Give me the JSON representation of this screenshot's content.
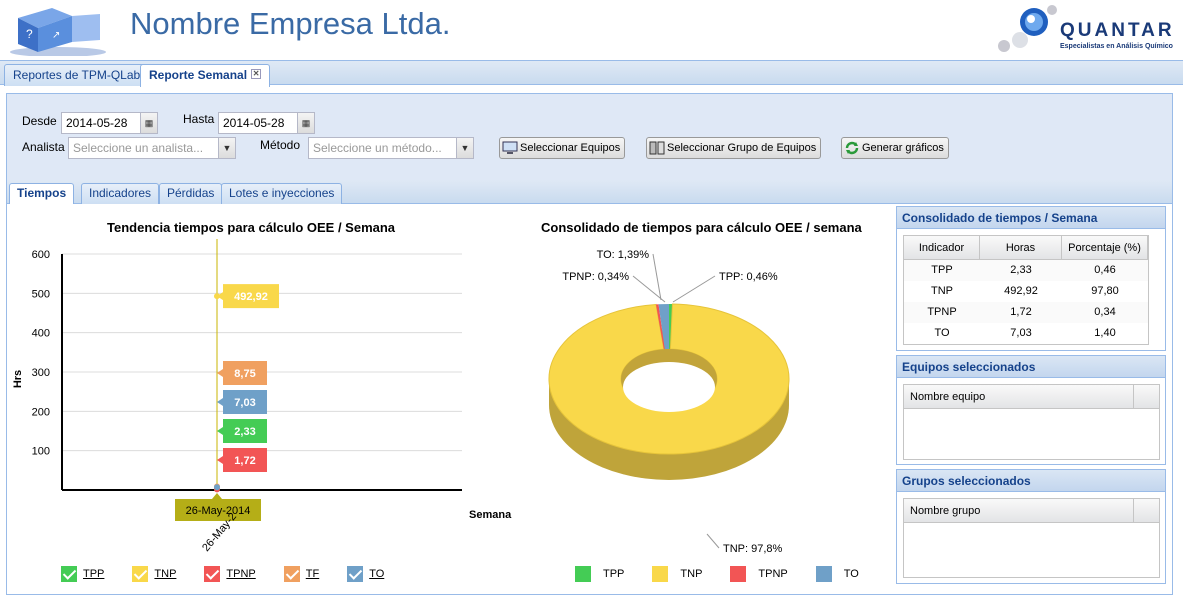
{
  "header": {
    "company": "Nombre Empresa Ltda.",
    "brand": "QUANTAR",
    "brand_sub": "Especialistas en Análisis Químico"
  },
  "tabs": [
    {
      "label": "Reportes de TPM-QLabs"
    },
    {
      "label": "Reporte Semanal"
    }
  ],
  "form": {
    "desde_label": "Desde",
    "desde_value": "2014-05-28",
    "hasta_label": "Hasta",
    "hasta_value": "2014-05-28",
    "analista_label": "Analista",
    "analista_placeholder": "Seleccione un analista...",
    "metodo_label": "Método",
    "metodo_placeholder": "Seleccione un método...",
    "btn_equipos": "Seleccionar Equipos",
    "btn_grupo": "Seleccionar Grupo de Equipos",
    "btn_generar": "Generar gráficos"
  },
  "subtabs": [
    {
      "label": "Tiempos"
    },
    {
      "label": "Indicadores"
    },
    {
      "label": "Pérdidas"
    },
    {
      "label": "Lotes e inyecciones"
    }
  ],
  "colors": {
    "TPP": "#44cc55",
    "TNP": "#f9d84a",
    "TPNP": "#f25555",
    "TF": "#f0a060",
    "TO": "#6fa0c8"
  },
  "chart_data": [
    {
      "type": "line",
      "title": "Tendencia tiempos para cálculo OEE / Semana",
      "ylabel": "Hrs",
      "xlabel": "Semana",
      "ylim": [
        0,
        600
      ],
      "yticks": [
        "100",
        "200",
        "300",
        "400",
        "500",
        "600"
      ],
      "x": [
        "26-May-2014"
      ],
      "x_tick_label": "26-May-2",
      "crosshair_label": "26-May-2014",
      "series": [
        {
          "name": "TPP",
          "values": [
            2.33
          ],
          "label": "2,33"
        },
        {
          "name": "TNP",
          "values": [
            492.92
          ],
          "label": "492,92"
        },
        {
          "name": "TPNP",
          "values": [
            1.72
          ],
          "label": "1,72"
        },
        {
          "name": "TF",
          "values": [
            8.75
          ],
          "label": "8,75"
        },
        {
          "name": "TO",
          "values": [
            7.03
          ],
          "label": "7,03"
        }
      ],
      "legend": [
        "TPP",
        "TNP",
        "TPNP",
        "TF",
        "TO"
      ]
    },
    {
      "type": "pie",
      "title": "Consolidado de tiempos para cálculo OEE / semana",
      "slices": [
        {
          "name": "TPP",
          "value": 0.46,
          "label": "TPP: 0,46%"
        },
        {
          "name": "TNP",
          "value": 97.8,
          "label": "TNP: 97,8%"
        },
        {
          "name": "TPNP",
          "value": 0.34,
          "label": "TPNP: 0,34%"
        },
        {
          "name": "TO",
          "value": 1.39,
          "label": "TO: 1,39%"
        }
      ],
      "legend": [
        "TPP",
        "TNP",
        "TPNP",
        "TO"
      ]
    }
  ],
  "consolidado": {
    "title": "Consolidado de tiempos / Semana",
    "headers": [
      "Indicador",
      "Horas",
      "Porcentaje (%)"
    ],
    "rows": [
      [
        "TPP",
        "2,33",
        "0,46"
      ],
      [
        "TNP",
        "492,92",
        "97,80"
      ],
      [
        "TPNP",
        "1,72",
        "0,34"
      ],
      [
        "TO",
        "7,03",
        "1,40"
      ]
    ]
  },
  "equipos": {
    "title": "Equipos seleccionados",
    "header": "Nombre equipo"
  },
  "grupos": {
    "title": "Grupos seleccionados",
    "header": "Nombre grupo"
  }
}
